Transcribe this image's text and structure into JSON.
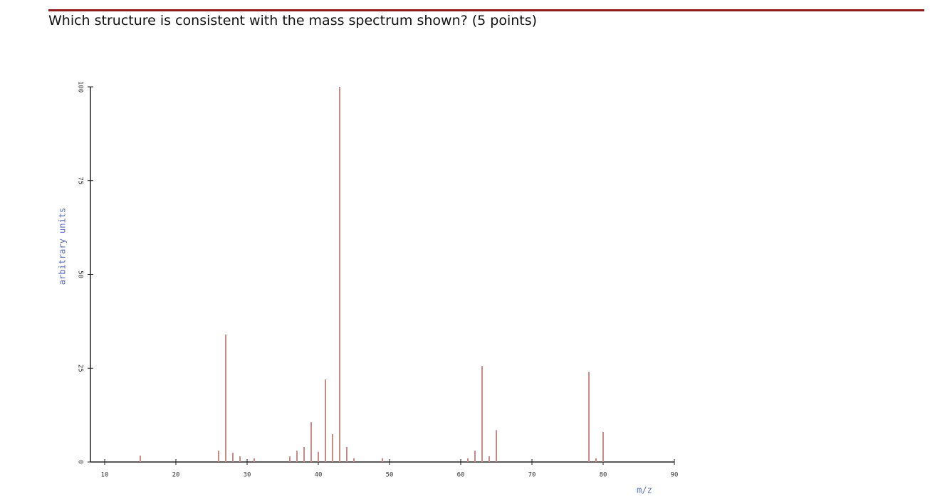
{
  "question": "Which structure is consistent with the mass spectrum shown?  (5 points)",
  "chart_data": {
    "type": "stem",
    "x_label": "m/z",
    "y_label": "arbitrary units",
    "x": [
      15,
      26,
      27,
      28,
      29,
      31,
      36,
      37,
      38,
      39,
      40,
      41,
      42,
      43,
      44,
      45,
      49,
      61,
      62,
      63,
      64,
      65,
      78,
      79,
      80
    ],
    "values": [
      1.7,
      3,
      34,
      2.5,
      1.5,
      1,
      1.5,
      3,
      4,
      10.6,
      2.7,
      22,
      7.4,
      100,
      4,
      1,
      1,
      1,
      3,
      25.6,
      1.5,
      8.5,
      24,
      1,
      8
    ],
    "color": "#c98a86",
    "xlim": [
      8,
      90
    ],
    "ylim": [
      0,
      100
    ],
    "xticks": [
      10,
      20,
      30,
      40,
      50,
      60,
      70,
      80,
      90
    ],
    "yticks": [
      0,
      25,
      50,
      75,
      100
    ]
  }
}
